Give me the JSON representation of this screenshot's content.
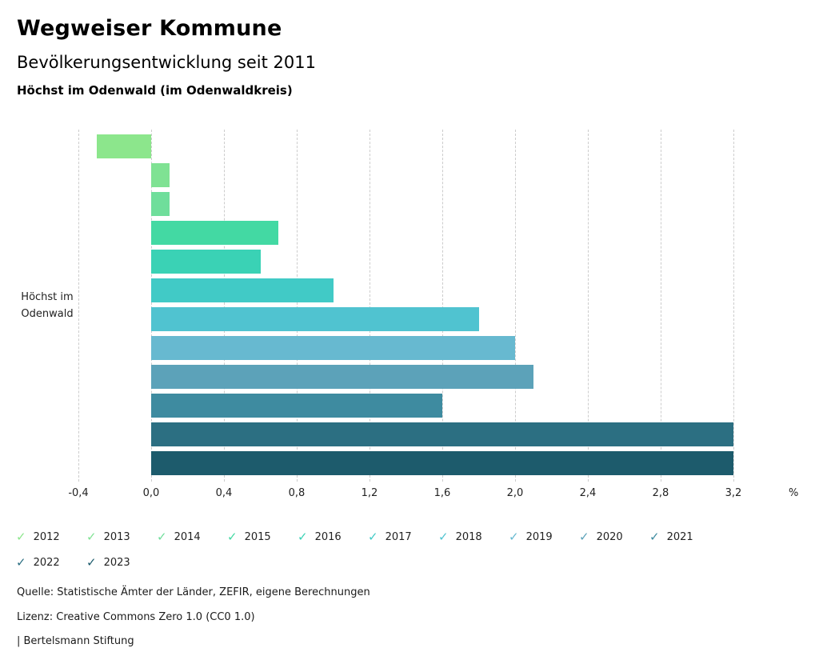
{
  "header": {
    "title": "Wegweiser Kommune",
    "subtitle": "Bevölkerungsentwicklung seit 2011",
    "region": "Höchst im Odenwald (im Odenwaldkreis)"
  },
  "chart_data": {
    "type": "bar",
    "orientation": "horizontal",
    "title": "Bevölkerungsentwicklung seit 2011",
    "category": "Höchst im Odenwald",
    "category_label_lines": [
      "Höchst im",
      "Odenwald"
    ],
    "unit": "%",
    "axis_unit_label": "%",
    "xlim": [
      -0.4,
      3.6
    ],
    "x_ticks": [
      "-0,4",
      "0,0",
      "0,4",
      "0,8",
      "1,2",
      "1,6",
      "2,0",
      "2,4",
      "2,8",
      "3,2"
    ],
    "x_tick_values": [
      -0.4,
      0.0,
      0.4,
      0.8,
      1.2,
      1.6,
      2.0,
      2.4,
      2.8,
      3.2
    ],
    "grid": "dashed-vertical",
    "legend_position": "bottom",
    "series": [
      {
        "name": "2012",
        "value": -0.3,
        "color": "#8ce68c"
      },
      {
        "name": "2013",
        "value": 0.1,
        "color": "#7fe293"
      },
      {
        "name": "2014",
        "value": 0.1,
        "color": "#6fde9b"
      },
      {
        "name": "2015",
        "value": 0.7,
        "color": "#43d9a3"
      },
      {
        "name": "2016",
        "value": 0.6,
        "color": "#3ad2b5"
      },
      {
        "name": "2017",
        "value": 1.0,
        "color": "#41cac6"
      },
      {
        "name": "2018",
        "value": 1.8,
        "color": "#50c3d0"
      },
      {
        "name": "2019",
        "value": 2.0,
        "color": "#67b9d0"
      },
      {
        "name": "2020",
        "value": 2.1,
        "color": "#5ca2b9"
      },
      {
        "name": "2021",
        "value": 1.6,
        "color": "#3e8ba0"
      },
      {
        "name": "2022",
        "value": 3.2,
        "color": "#2c6f82"
      },
      {
        "name": "2023",
        "value": 3.2,
        "color": "#1d5b6c"
      }
    ]
  },
  "legend": {
    "check_glyph": "✓"
  },
  "footer": {
    "source": "Quelle: Statistische Ämter der Länder, ZEFIR, eigene Berechnungen",
    "license": "Lizenz: Creative Commons Zero 1.0 (CC0 1.0)",
    "attribution": "| Bertelsmann Stiftung"
  }
}
